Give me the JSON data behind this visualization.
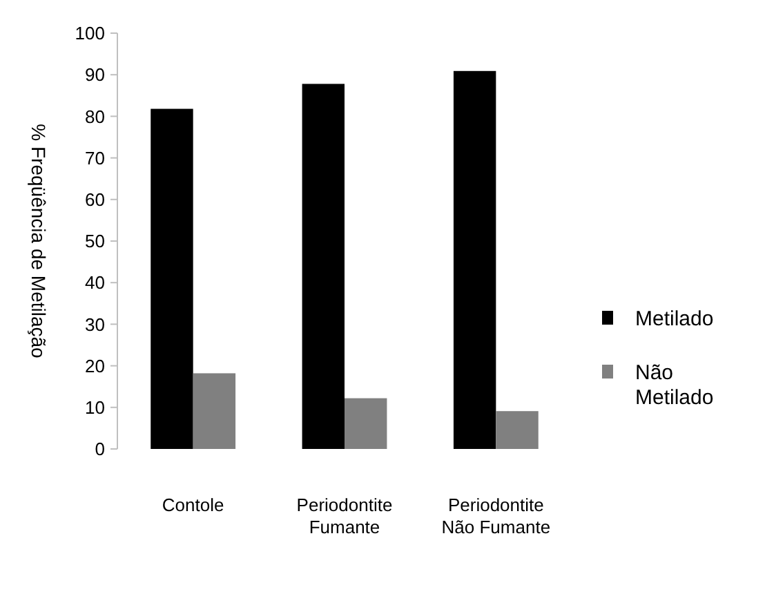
{
  "chart_data": {
    "type": "bar",
    "ylabel": "% Freqüência de Metilação",
    "categories": [
      "Contole",
      "Periodontite Fumante",
      "Periodontite Não Fumante"
    ],
    "series": [
      {
        "name": "Metilado",
        "color": "#000000",
        "values": [
          81.8,
          87.8,
          90.9
        ]
      },
      {
        "name": "Não Metilado",
        "color": "#808080",
        "values": [
          18.2,
          12.2,
          9.1
        ]
      }
    ],
    "ylim": [
      0,
      100
    ],
    "yticks": [
      0,
      10,
      20,
      30,
      40,
      50,
      60,
      70,
      80,
      90,
      100
    ],
    "grid": false,
    "legend": "right"
  }
}
